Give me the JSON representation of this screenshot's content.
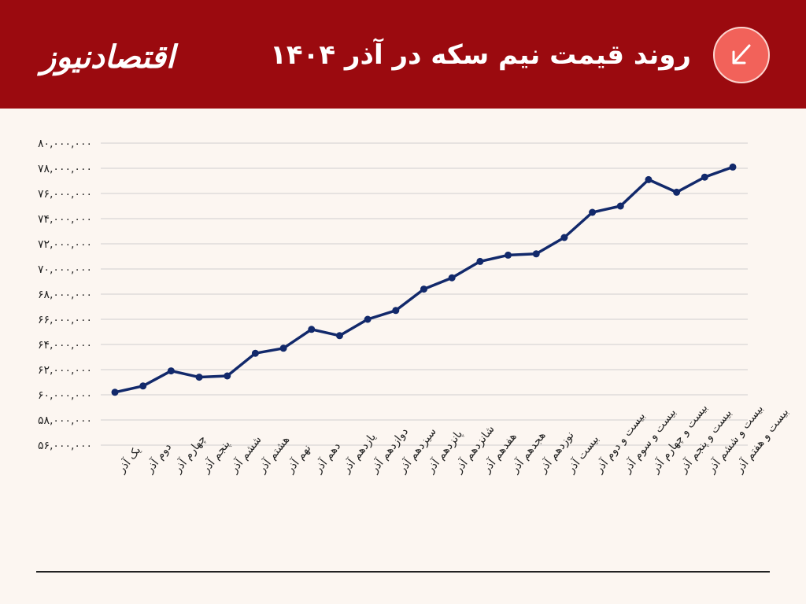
{
  "header": {
    "title": "روند قیمت نیم سکه در آذر ۱۴۰۴",
    "logo_text": "اقتصادنیوز",
    "trend_icon": "arrow-down-left-icon",
    "colors": {
      "header_bg": "#9b0a0f",
      "badge_bg": "#f2625a",
      "line": "#12296b",
      "background": "#fcf6f1"
    }
  },
  "chart_data": {
    "type": "line",
    "title": "روند قیمت نیم سکه در آذر ۱۴۰۴",
    "xlabel": "",
    "ylabel": "",
    "ylim": [
      56000000,
      80000000
    ],
    "grid": true,
    "yticks": [
      {
        "value": 80000000,
        "label": "۸۰,۰۰۰,۰۰۰"
      },
      {
        "value": 78000000,
        "label": "۷۸,۰۰۰,۰۰۰"
      },
      {
        "value": 76000000,
        "label": "۷۶,۰۰۰,۰۰۰"
      },
      {
        "value": 74000000,
        "label": "۷۴,۰۰۰,۰۰۰"
      },
      {
        "value": 72000000,
        "label": "۷۲,۰۰۰,۰۰۰"
      },
      {
        "value": 70000000,
        "label": "۷۰,۰۰۰,۰۰۰"
      },
      {
        "value": 68000000,
        "label": "۶۸,۰۰۰,۰۰۰"
      },
      {
        "value": 66000000,
        "label": "۶۶,۰۰۰,۰۰۰"
      },
      {
        "value": 64000000,
        "label": "۶۴,۰۰۰,۰۰۰"
      },
      {
        "value": 62000000,
        "label": "۶۲,۰۰۰,۰۰۰"
      },
      {
        "value": 60000000,
        "label": "۶۰,۰۰۰,۰۰۰"
      },
      {
        "value": 58000000,
        "label": "۵۸,۰۰۰,۰۰۰"
      },
      {
        "value": 56000000,
        "label": "۵۶,۰۰۰,۰۰۰"
      }
    ],
    "categories": [
      "یک آذر",
      "دوم آذر",
      "چهارم آذر",
      "پنجم آذر",
      "ششم آذر",
      "هشتم آذر",
      "نهم آذر",
      "دهم آذر",
      "یازدهم آذر",
      "دوازدهم آذر",
      "سیزدهم آذر",
      "پانزدهم آذر",
      "شانزدهم آذر",
      "هفدهم آذر",
      "هجدهم آذر",
      "نوزدهم آذر",
      "بیست آذر",
      "بیست و دوم آذر",
      "بیست و سوم آذر",
      "بیست و چهارم آذر",
      "بیست و پنجم آذر",
      "بیست و ششم آذر",
      "بیست و هفتم آذر"
    ],
    "series": [
      {
        "values": [
          60200000,
          60700000,
          61900000,
          61400000,
          61500000,
          63300000,
          63700000,
          65200000,
          64700000,
          66000000,
          66700000,
          68400000,
          69300000,
          70600000,
          71100000,
          71200000,
          72500000,
          74500000,
          75000000,
          77100000,
          76100000,
          77300000,
          78100000
        ]
      }
    ]
  }
}
